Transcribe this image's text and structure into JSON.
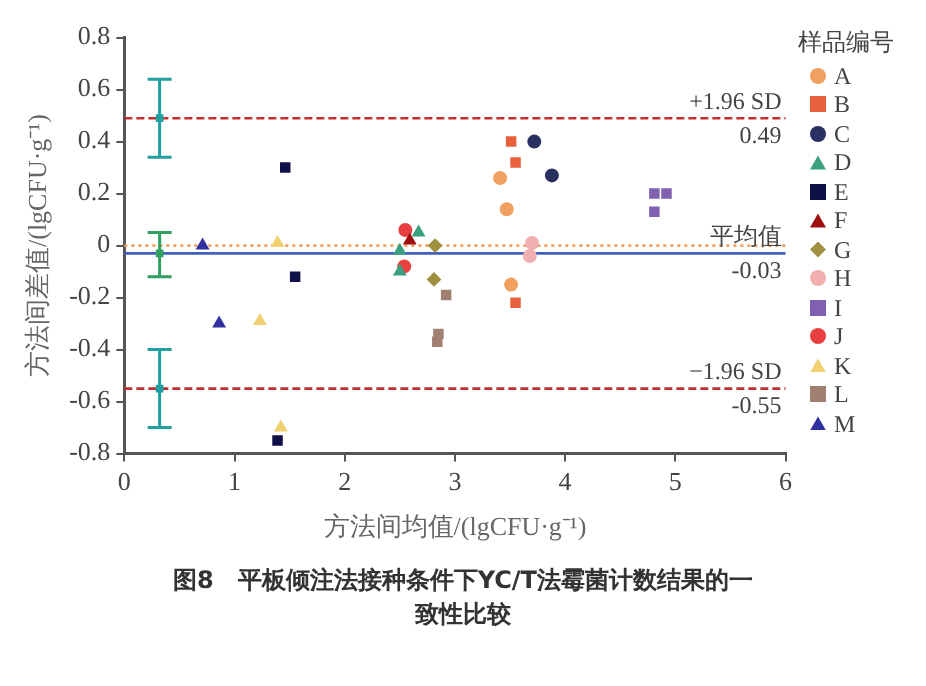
{
  "chart_data": {
    "type": "scatter",
    "xlabel": "方法间均值/(lgCFU·g⁻¹)",
    "ylabel": "方法间差值/(lgCFU·g⁻¹)",
    "legend_title": "样品编号",
    "legend": "right",
    "grid": false,
    "xlim": [
      0,
      6
    ],
    "xticks": [
      0,
      1,
      2,
      3,
      4,
      5,
      6
    ],
    "ylim": [
      -0.8,
      0.8
    ],
    "yticks": [
      -0.8,
      -0.6,
      -0.4,
      -0.2,
      0,
      0.2,
      0.4,
      0.6,
      0.8
    ],
    "series": [
      {
        "name": "A",
        "color": "#f0a060",
        "marker": "circle",
        "x": [
          3.41,
          3.47,
          3.51
        ],
        "values": [
          0.26,
          0.14,
          -0.15
        ]
      },
      {
        "name": "B",
        "color": "#e8603c",
        "marker": "square",
        "x": [
          3.51,
          3.55,
          3.55
        ],
        "values": [
          0.4,
          0.32,
          -0.22
        ]
      },
      {
        "name": "C",
        "color": "#2a3060",
        "marker": "circle",
        "x": [
          3.72,
          3.88
        ],
        "values": [
          0.4,
          0.27
        ]
      },
      {
        "name": "D",
        "color": "#3aa080",
        "marker": "triangle",
        "x": [
          2.67,
          2.5,
          2.5
        ],
        "values": [
          0.05,
          -0.02,
          -0.1
        ]
      },
      {
        "name": "E",
        "color": "#101048",
        "marker": "square",
        "x": [
          1.46,
          1.55,
          1.39
        ],
        "values": [
          0.3,
          -0.12,
          -0.75
        ]
      },
      {
        "name": "F",
        "color": "#a01010",
        "marker": "triangle",
        "x": [
          2.59
        ],
        "values": [
          0.02
        ]
      },
      {
        "name": "G",
        "color": "#a09040",
        "marker": "diamond",
        "x": [
          2.82,
          2.81
        ],
        "values": [
          0,
          -0.13
        ]
      },
      {
        "name": "H",
        "color": "#f0b0b0",
        "marker": "circle",
        "x": [
          3.7,
          3.68
        ],
        "values": [
          0.01,
          -0.04
        ]
      },
      {
        "name": "I",
        "color": "#8060b0",
        "marker": "square",
        "x": [
          4.81,
          4.92,
          4.81
        ],
        "values": [
          0.2,
          0.2,
          0.13
        ]
      },
      {
        "name": "J",
        "color": "#e84040",
        "marker": "circle",
        "x": [
          2.55,
          2.54
        ],
        "values": [
          0.06,
          -0.08
        ]
      },
      {
        "name": "K",
        "color": "#f0d070",
        "marker": "triangle",
        "x": [
          1.39,
          1.23,
          1.42
        ],
        "values": [
          0.01,
          -0.29,
          -0.7
        ]
      },
      {
        "name": "L",
        "color": "#a08070",
        "marker": "square",
        "x": [
          2.92,
          2.85,
          2.84
        ],
        "values": [
          -0.19,
          -0.34,
          -0.37
        ]
      },
      {
        "name": "M",
        "color": "#3030a0",
        "marker": "triangle",
        "x": [
          0.71,
          0.86
        ],
        "values": [
          0,
          -0.3
        ]
      },
      {
        "type": "scatter",
        "marker": "square",
        "x": [
          0.32,
          0.32,
          0.32
        ],
        "values": [
          0.49,
          -0.03,
          -0.55
        ],
        "colors": [
          "#20a0a0",
          "#30a060",
          "#20a0a0"
        ],
        "errors": [
          [
            0.34,
            0.64
          ],
          [
            -0.12,
            0.05
          ],
          [
            -0.7,
            -0.4
          ]
        ]
      }
    ],
    "ref_lines": [
      {
        "axis": "y",
        "value": 0.49,
        "label": "+1.96 SD\n0.49",
        "color": "#c03030",
        "line_style": "dashed"
      },
      {
        "axis": "y",
        "value": 0,
        "color": "#f0a060",
        "line_style": "dotted"
      },
      {
        "axis": "y",
        "value": -0.03,
        "label": "平均值\n-0.03",
        "color": "#4060c0",
        "line_style": "solid"
      },
      {
        "axis": "y",
        "value": -0.55,
        "label": "−1.96 SD\n-0.55",
        "color": "#c03030",
        "line_style": "dashed"
      }
    ],
    "annotations": [
      "图8　平板倾注法接种条件下YC/T法霉菌计数结果的一致性比较"
    ]
  }
}
